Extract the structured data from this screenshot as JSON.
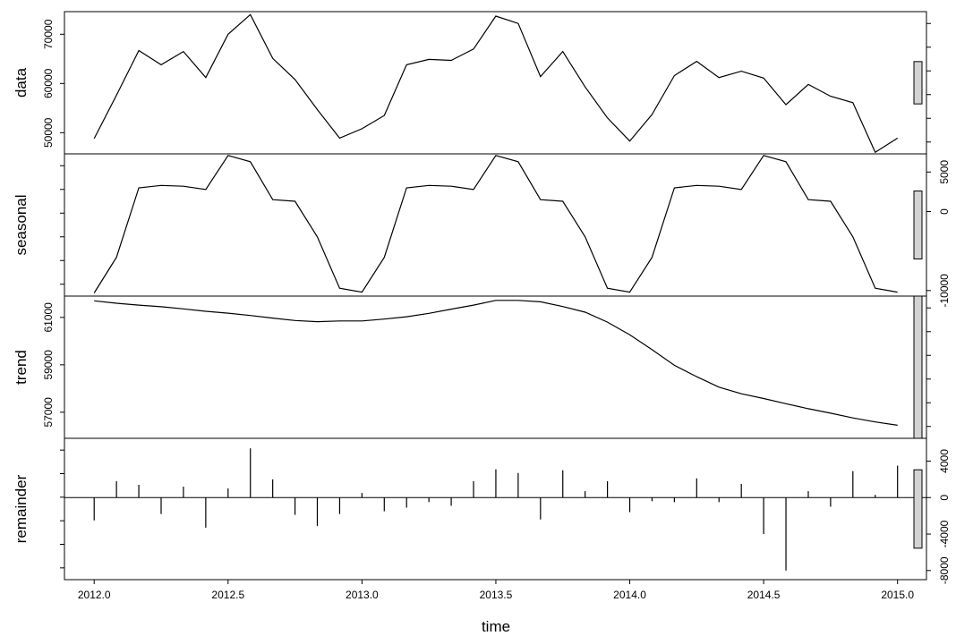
{
  "chart_data": {
    "type": "line",
    "xlabel": "time",
    "x_ticks": [
      "2012.0",
      "2012.5",
      "2013.0",
      "2013.5",
      "2014.0",
      "2014.5",
      "2015.0"
    ],
    "x_tick_values": [
      2012.0,
      2012.5,
      2013.0,
      2013.5,
      2014.0,
      2014.5,
      2015.0
    ],
    "xlim": [
      2011.889,
      2015.108
    ],
    "x": [
      2012.0,
      2012.0833,
      2012.1667,
      2012.25,
      2012.3333,
      2012.4167,
      2012.5,
      2012.5833,
      2012.6667,
      2012.75,
      2012.8333,
      2012.9167,
      2013.0,
      2013.0833,
      2013.1667,
      2013.25,
      2013.3333,
      2013.4167,
      2013.5,
      2013.5833,
      2013.6667,
      2013.75,
      2013.8333,
      2013.9167,
      2014.0,
      2014.0833,
      2014.1667,
      2014.25,
      2014.3333,
      2014.4167,
      2014.5,
      2014.5833,
      2014.6667,
      2014.75,
      2014.8333,
      2014.9167,
      2015.0
    ],
    "range_bar_half_span": 4300,
    "panels": [
      {
        "name": "data",
        "label": "data",
        "ylim": [
          45700,
          74600
        ],
        "y_ticks": [
          "50000",
          "60000",
          "70000"
        ],
        "y_tick_values": [
          50000,
          60000,
          70000
        ],
        "tick_side": "left",
        "style": "line",
        "values": [
          48800,
          57600,
          66700,
          63800,
          66500,
          61200,
          70000,
          74000,
          65100,
          60800,
          54700,
          48900,
          50800,
          53500,
          63800,
          64900,
          64700,
          67000,
          73700,
          72200,
          61400,
          66500,
          59300,
          53000,
          48300,
          53700,
          61600,
          64500,
          61200,
          62500,
          61100,
          55700,
          59800,
          57400,
          56100,
          46000,
          48900
        ]
      },
      {
        "name": "seasonal",
        "label": "seasonal",
        "ylim": [
          -10700,
          7300
        ],
        "y_ticks": [
          "5000",
          "0",
          "-10000"
        ],
        "y_tick_values": [
          5000,
          0,
          -10000
        ],
        "tick_side": "right",
        "style": "line",
        "values": [
          -10300,
          -5800,
          3000,
          3300,
          3200,
          2800,
          7100,
          6300,
          1500,
          1300,
          -3200,
          -9700,
          -10200,
          -5800,
          3000,
          3300,
          3200,
          2800,
          7100,
          6300,
          1500,
          1300,
          -3200,
          -9700,
          -10200,
          -5800,
          3000,
          3300,
          3200,
          2800,
          7100,
          6300,
          1500,
          1300,
          -3200,
          -9700,
          -10200
        ]
      },
      {
        "name": "trend",
        "label": "trend",
        "ylim": [
          55900,
          61900
        ],
        "y_ticks": [
          "57000",
          "59000",
          "61000"
        ],
        "y_tick_values": [
          57000,
          59000,
          61000
        ],
        "tick_side": "left",
        "style": "line",
        "values": [
          61700,
          61600,
          61520,
          61450,
          61360,
          61260,
          61180,
          61080,
          60970,
          60870,
          60820,
          60850,
          60850,
          60930,
          61030,
          61170,
          61350,
          61520,
          61720,
          61720,
          61660,
          61460,
          61220,
          60800,
          60270,
          59640,
          58980,
          58500,
          58060,
          57780,
          57580,
          57360,
          57150,
          56960,
          56760,
          56590,
          56450
        ]
      },
      {
        "name": "remainder",
        "label": "remainder",
        "ylim": [
          -9000,
          6500
        ],
        "y_ticks": [
          "4000",
          "0",
          "-4000",
          "-8000"
        ],
        "y_tick_values": [
          4000,
          0,
          -4000,
          -8000
        ],
        "tick_side": "right",
        "style": "spikes",
        "values": [
          -2500,
          1800,
          1400,
          -1800,
          1200,
          -3300,
          1000,
          5400,
          2000,
          -1900,
          -3100,
          -1800,
          500,
          -1500,
          -1100,
          -500,
          -900,
          1800,
          3100,
          2700,
          -2400,
          3000,
          700,
          1800,
          -1600,
          -400,
          -500,
          2100,
          -500,
          1500,
          -4000,
          -8000,
          700,
          -1000,
          2900,
          300,
          3500
        ]
      }
    ]
  }
}
